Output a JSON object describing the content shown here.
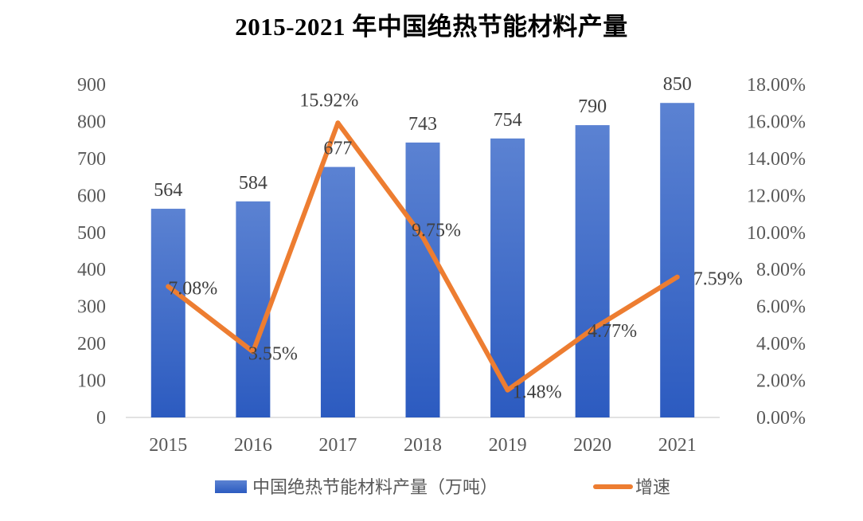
{
  "chart_data": {
    "type": "bar",
    "title": "2015-2021 年中国绝热节能材料产量",
    "categories": [
      "2015",
      "2016",
      "2017",
      "2018",
      "2019",
      "2020",
      "2021"
    ],
    "series": [
      {
        "name": "中国绝热节能材料产量（万吨）",
        "type": "bar",
        "axis": "left",
        "values": [
          564,
          584,
          677,
          743,
          754,
          790,
          850
        ],
        "labels": [
          "564",
          "584",
          "677",
          "743",
          "754",
          "790",
          "850"
        ],
        "color": "#4472c4"
      },
      {
        "name": "增速",
        "type": "line",
        "axis": "right",
        "values": [
          7.08,
          3.55,
          15.92,
          9.75,
          1.48,
          4.77,
          7.59
        ],
        "labels": [
          "7.08%",
          "3.55%",
          "15.92%",
          "9.75%",
          "1.48%",
          "4.77%",
          "7.59%"
        ],
        "color": "#ed7d31"
      }
    ],
    "y_left": {
      "ylim": [
        0,
        900
      ],
      "ticks": [
        "0",
        "100",
        "200",
        "300",
        "400",
        "500",
        "600",
        "700",
        "800",
        "900"
      ]
    },
    "y_right": {
      "ylim": [
        0,
        18
      ],
      "ticks": [
        "0.00%",
        "2.00%",
        "4.00%",
        "6.00%",
        "8.00%",
        "10.00%",
        "12.00%",
        "14.00%",
        "16.00%",
        "18.00%"
      ]
    },
    "grid": false,
    "legend_position": "bottom"
  }
}
